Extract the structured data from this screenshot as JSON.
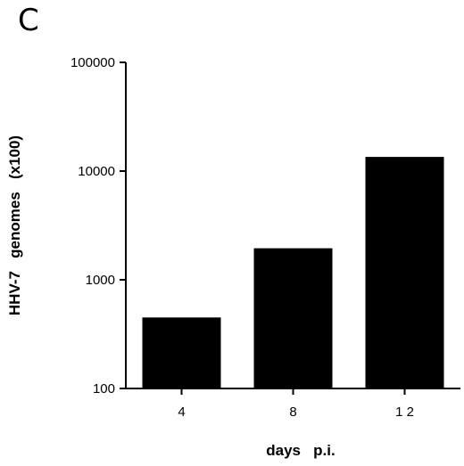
{
  "panel_label": "C",
  "chart_data": {
    "type": "bar",
    "categories": [
      "4",
      "8",
      "1 2"
    ],
    "values": [
      450,
      1950,
      13500
    ],
    "xlabel": "days   p.i.",
    "ylabel": "HHV-7   genomes   (x100)",
    "yscale": "log",
    "ylim": [
      100,
      100000
    ],
    "yticks": [
      100,
      1000,
      10000,
      100000
    ],
    "ytick_labels": [
      "100",
      "1000",
      "10000",
      "100000"
    ],
    "bar_color": "#000000",
    "grid": false
  }
}
